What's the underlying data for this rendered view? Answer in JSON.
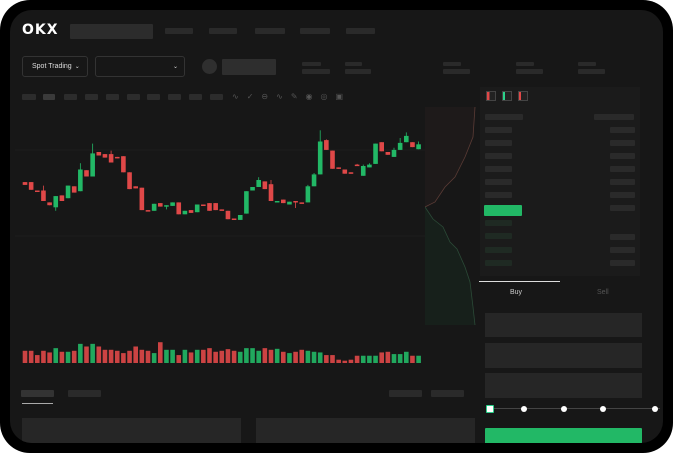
{
  "brand": {
    "logo_text": "OKX"
  },
  "toolbar": {
    "market_select_label": "Spot Trading",
    "pair_select_value": ""
  },
  "order_form": {
    "tabs": [
      {
        "label": "Buy",
        "active": true
      },
      {
        "label": "Sell",
        "active": false
      }
    ],
    "leverage_steps": 5,
    "leverage_selected": 0
  },
  "colors": {
    "up": "#22b866",
    "down": "#e04848",
    "background": "#171717"
  },
  "chart_data": {
    "type": "candlestick",
    "candles": [
      [
        97,
        93,
        97,
        93
      ],
      [
        97,
        86,
        97,
        86
      ],
      [
        85,
        83,
        85,
        83
      ],
      [
        85,
        70,
        92,
        70
      ],
      [
        68,
        64,
        68,
        64
      ],
      [
        61,
        77,
        77,
        56
      ],
      [
        78,
        70,
        78,
        70
      ],
      [
        74,
        92,
        92,
        74
      ],
      [
        91,
        82,
        91,
        82
      ],
      [
        84,
        115,
        124,
        84
      ],
      [
        114,
        105,
        114,
        105
      ],
      [
        105,
        138,
        152,
        105
      ],
      [
        140,
        135,
        140,
        135
      ],
      [
        137,
        132,
        137,
        132
      ],
      [
        137,
        125,
        142,
        125
      ],
      [
        133,
        131,
        133,
        131
      ],
      [
        134,
        111,
        134,
        111
      ],
      [
        111,
        87,
        111,
        87
      ],
      [
        91,
        88,
        91,
        88
      ],
      [
        89,
        57,
        89,
        57
      ],
      [
        57,
        56,
        57,
        56
      ],
      [
        56,
        66,
        66,
        56
      ],
      [
        67,
        62,
        67,
        62
      ],
      [
        62,
        64,
        64,
        58
      ],
      [
        63,
        68,
        68,
        63
      ],
      [
        68,
        51,
        68,
        51
      ],
      [
        51,
        56,
        56,
        51
      ],
      [
        57,
        53,
        57,
        53
      ],
      [
        54,
        65,
        65,
        54
      ],
      [
        65,
        63,
        65,
        63
      ],
      [
        67,
        56,
        67,
        56
      ],
      [
        67,
        57,
        67,
        57
      ],
      [
        58,
        57,
        58,
        57
      ],
      [
        56,
        44,
        56,
        44
      ],
      [
        45,
        44,
        45,
        44
      ],
      [
        43,
        50,
        50,
        43
      ],
      [
        52,
        84,
        84,
        52
      ],
      [
        85,
        90,
        90,
        85
      ],
      [
        90,
        100,
        104,
        90
      ],
      [
        98,
        87,
        98,
        87
      ],
      [
        94,
        70,
        100,
        70
      ],
      [
        68,
        70,
        70,
        68
      ],
      [
        72,
        67,
        72,
        67
      ],
      [
        65,
        69,
        69,
        65
      ],
      [
        70,
        69,
        70,
        60
      ],
      [
        68,
        67,
        68,
        67
      ],
      [
        68,
        91,
        93,
        68
      ],
      [
        91,
        108,
        110,
        91
      ],
      [
        108,
        155,
        171,
        108
      ],
      [
        157,
        143,
        158,
        143
      ],
      [
        142,
        116,
        142,
        116
      ],
      [
        118,
        116,
        118,
        116
      ],
      [
        115,
        109,
        115,
        109
      ],
      [
        111,
        109,
        111,
        109
      ],
      [
        122,
        121,
        123,
        121
      ],
      [
        106,
        120,
        122,
        106
      ],
      [
        118,
        122,
        124,
        118
      ],
      [
        123,
        152,
        152,
        123
      ],
      [
        154,
        141,
        154,
        141
      ],
      [
        140,
        136,
        140,
        136
      ],
      [
        133,
        143,
        146,
        133
      ],
      [
        143,
        153,
        160,
        143
      ],
      [
        154,
        163,
        168,
        154
      ],
      [
        154,
        147,
        154,
        147
      ],
      [
        144,
        151,
        155,
        144
      ]
    ],
    "volumes": [
      37,
      37,
      24,
      37,
      32,
      45,
      34,
      34,
      37,
      58,
      50,
      58,
      50,
      40,
      40,
      37,
      30,
      37,
      50,
      40,
      37,
      30,
      63,
      40,
      40,
      24,
      40,
      32,
      40,
      40,
      45,
      34,
      37,
      42,
      37,
      34,
      45,
      45,
      37,
      45,
      40,
      43,
      34,
      30,
      34,
      40,
      37,
      34,
      32,
      24,
      24,
      10,
      7,
      10,
      22,
      22,
      22,
      22,
      32,
      34,
      27,
      27,
      34,
      22,
      22
    ]
  }
}
